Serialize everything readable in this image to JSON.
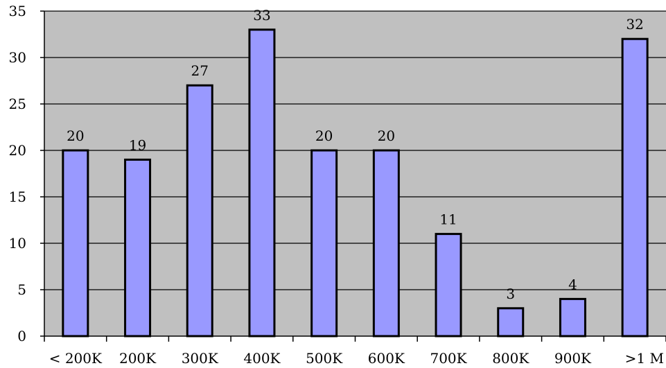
{
  "colors": {
    "plot_background": "#c0c0c0",
    "bar_fill": "#9999ff",
    "bar_stroke": "#000000",
    "gridline": "#000000",
    "page_background": "#ffffff"
  },
  "chart_data": {
    "type": "bar",
    "title": "",
    "xlabel": "",
    "ylabel": "",
    "categories": [
      "< 200K",
      "200K",
      "300K",
      "400K",
      "500K",
      "600K",
      "700K",
      "800K",
      "900K",
      ">1 M"
    ],
    "values": [
      20,
      19,
      27,
      33,
      20,
      20,
      11,
      3,
      4,
      32
    ],
    "data_labels": [
      "20",
      "19",
      "27",
      "33",
      "20",
      "20",
      "11",
      "3",
      "4",
      "32"
    ],
    "ylim": [
      0,
      35
    ],
    "y_ticks": [
      "0",
      "5",
      "10",
      "15",
      "20",
      "25",
      "30",
      "35"
    ],
    "grid": true,
    "legend": "none"
  }
}
